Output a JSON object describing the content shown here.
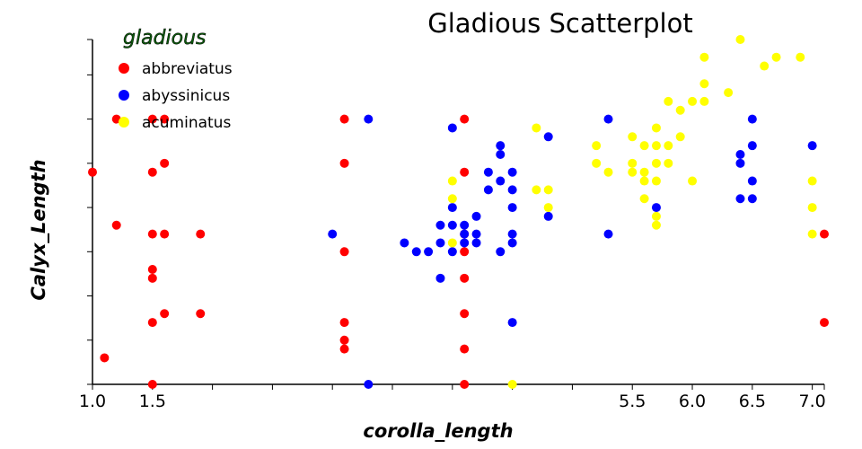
{
  "chart_data": {
    "type": "scatter",
    "title": "Gladious Scatterplot",
    "xlabel": "corolla_length",
    "ylabel": "Calyx_Length",
    "xlim": [
      1.0,
      7.1
    ],
    "ylim": [
      4.0,
      7.9
    ],
    "x_ticks": [
      1.0,
      1.5,
      2.0,
      2.5,
      3.0,
      3.5,
      4.0,
      4.5,
      5.0,
      5.5,
      6.0,
      6.5,
      7.0
    ],
    "x_tick_labels": {
      "1.0": "1.0",
      "1.5": "1.5",
      "5.5": "5.5",
      "6.0": "6.0",
      "6.5": "6.5",
      "7.0": "7.0"
    },
    "y_ticks": [
      4.0,
      4.5,
      5.0,
      5.5,
      6.0,
      6.5,
      7.0,
      7.5,
      7.9
    ],
    "y_tick_labels_shown": false,
    "grid": false,
    "legend": {
      "title": "gladious",
      "placement": "top-left"
    },
    "series": [
      {
        "name": "abbreviatus",
        "color": "#ff0000",
        "points": [
          [
            1.2,
            7.0
          ],
          [
            1.5,
            7.0
          ],
          [
            1.6,
            7.0
          ],
          [
            1.0,
            6.4
          ],
          [
            1.5,
            6.4
          ],
          [
            1.6,
            6.5
          ],
          [
            1.2,
            5.8
          ],
          [
            1.5,
            5.7
          ],
          [
            1.6,
            5.7
          ],
          [
            1.9,
            5.7
          ],
          [
            1.5,
            5.3
          ],
          [
            1.5,
            5.2
          ],
          [
            1.6,
            4.8
          ],
          [
            1.9,
            4.8
          ],
          [
            1.5,
            4.7
          ],
          [
            1.1,
            4.3
          ],
          [
            1.5,
            4.0
          ],
          [
            3.1,
            7.0
          ],
          [
            3.1,
            6.5
          ],
          [
            3.1,
            5.5
          ],
          [
            3.1,
            4.7
          ],
          [
            3.1,
            4.5
          ],
          [
            3.1,
            4.4
          ],
          [
            4.1,
            7.0
          ],
          [
            4.1,
            6.4
          ],
          [
            4.1,
            5.7
          ],
          [
            4.1,
            5.5
          ],
          [
            4.1,
            5.2
          ],
          [
            4.1,
            4.8
          ],
          [
            4.1,
            4.4
          ],
          [
            4.1,
            4.0
          ],
          [
            7.1,
            5.7
          ],
          [
            7.1,
            4.7
          ]
        ]
      },
      {
        "name": "abyssinicus",
        "color": "#0000ff",
        "points": [
          [
            3.3,
            7.0
          ],
          [
            4.0,
            6.9
          ],
          [
            4.8,
            6.8
          ],
          [
            4.4,
            6.7
          ],
          [
            4.4,
            6.6
          ],
          [
            4.3,
            6.4
          ],
          [
            4.5,
            6.4
          ],
          [
            4.4,
            6.3
          ],
          [
            4.3,
            6.2
          ],
          [
            4.5,
            6.2
          ],
          [
            4.0,
            6.0
          ],
          [
            4.5,
            6.0
          ],
          [
            4.2,
            5.9
          ],
          [
            4.8,
            5.9
          ],
          [
            3.9,
            5.8
          ],
          [
            4.0,
            5.8
          ],
          [
            4.1,
            5.8
          ],
          [
            3.0,
            5.7
          ],
          [
            4.1,
            5.7
          ],
          [
            4.2,
            5.7
          ],
          [
            4.5,
            5.7
          ],
          [
            3.6,
            5.6
          ],
          [
            3.9,
            5.6
          ],
          [
            4.1,
            5.6
          ],
          [
            4.2,
            5.6
          ],
          [
            4.5,
            5.6
          ],
          [
            3.7,
            5.5
          ],
          [
            3.8,
            5.5
          ],
          [
            4.0,
            5.5
          ],
          [
            4.4,
            5.5
          ],
          [
            3.9,
            5.2
          ],
          [
            4.5,
            4.7
          ],
          [
            3.3,
            4.0
          ],
          [
            5.3,
            7.0
          ],
          [
            6.5,
            7.0
          ],
          [
            6.5,
            6.7
          ],
          [
            7.0,
            6.7
          ],
          [
            6.4,
            6.6
          ],
          [
            6.4,
            6.5
          ],
          [
            6.5,
            6.3
          ],
          [
            6.4,
            6.1
          ],
          [
            6.5,
            6.1
          ],
          [
            5.7,
            6.0
          ],
          [
            5.3,
            5.7
          ]
        ]
      },
      {
        "name": "acuminatus",
        "color": "#ffff00",
        "points": [
          [
            4.7,
            6.9
          ],
          [
            4.0,
            6.3
          ],
          [
            4.7,
            6.2
          ],
          [
            4.8,
            6.2
          ],
          [
            4.0,
            6.1
          ],
          [
            4.8,
            6.0
          ],
          [
            4.0,
            5.6
          ],
          [
            4.5,
            4.0
          ],
          [
            6.4,
            7.9
          ],
          [
            6.1,
            7.7
          ],
          [
            6.7,
            7.7
          ],
          [
            6.9,
            7.7
          ],
          [
            6.6,
            7.6
          ],
          [
            6.1,
            7.4
          ],
          [
            6.3,
            7.3
          ],
          [
            5.8,
            7.2
          ],
          [
            6.0,
            7.2
          ],
          [
            6.1,
            7.2
          ],
          [
            5.9,
            7.1
          ],
          [
            5.7,
            6.9
          ],
          [
            5.5,
            6.8
          ],
          [
            5.9,
            6.8
          ],
          [
            5.2,
            6.7
          ],
          [
            5.6,
            6.7
          ],
          [
            5.7,
            6.7
          ],
          [
            5.8,
            6.7
          ],
          [
            5.2,
            6.5
          ],
          [
            5.5,
            6.5
          ],
          [
            5.7,
            6.5
          ],
          [
            5.8,
            6.5
          ],
          [
            5.3,
            6.4
          ],
          [
            5.5,
            6.4
          ],
          [
            5.6,
            6.4
          ],
          [
            5.6,
            6.3
          ],
          [
            5.7,
            6.3
          ],
          [
            6.0,
            6.3
          ],
          [
            7.0,
            6.3
          ],
          [
            5.6,
            6.1
          ],
          [
            7.0,
            6.0
          ],
          [
            5.7,
            5.9
          ],
          [
            5.7,
            5.8
          ],
          [
            7.0,
            5.7
          ]
        ]
      }
    ]
  }
}
